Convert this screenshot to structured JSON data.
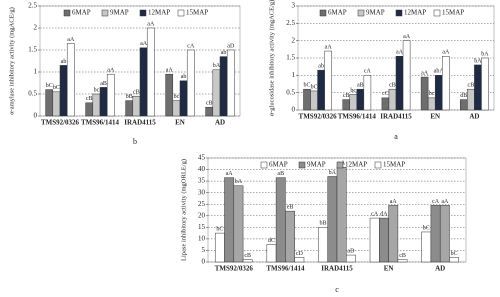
{
  "chart_data": [
    {
      "type": "bar",
      "panel_label": "b",
      "y_label": "α-amylase inhibitory activity (mgACE/g)",
      "categories": [
        "TMS92/0326",
        "TMS96/1414",
        "IRAD4115",
        "EN",
        "AD"
      ],
      "series": [
        {
          "name": "6MAP",
          "color": "#6e6e6e",
          "values": [
            0.6,
            0.3,
            0.35,
            0.95,
            0.2
          ],
          "letters": [
            "bC",
            "cB",
            "bB",
            "aA",
            "cB"
          ]
        },
        {
          "name": "9MAP",
          "color": "#c8c8c8",
          "values": [
            0.55,
            0.5,
            0.45,
            0.35,
            1.05
          ],
          "letters": [
            "bC",
            "bc",
            "cB",
            "bc",
            "bA"
          ]
        },
        {
          "name": "12MAP",
          "color": "#1f2a44",
          "values": [
            1.15,
            0.65,
            1.55,
            0.8,
            1.35
          ],
          "letters": [
            "ab",
            "aB",
            "aA",
            "ab",
            "ab"
          ]
        },
        {
          "name": "15MAP",
          "color": "#ffffff",
          "values": [
            1.65,
            0.95,
            2.0,
            1.5,
            1.5
          ],
          "letters": [
            "aA",
            "aA",
            "aA",
            "cA",
            "aD"
          ]
        }
      ],
      "ylim": [
        0,
        2.5
      ],
      "yticks": [
        0,
        0.5,
        1,
        1.5,
        2,
        2.5
      ],
      "grid": true
    },
    {
      "type": "bar",
      "panel_label": "a",
      "y_label": "α-glucosidase inhibitory activity (mgACE/g)",
      "categories": [
        "TMS92/0326",
        "TMS96/1414",
        "IRAD4115",
        "EN",
        "AD"
      ],
      "series": [
        {
          "name": "6MAP",
          "color": "#6e6e6e",
          "values": [
            0.6,
            0.3,
            0.35,
            0.95,
            0.3
          ],
          "letters": [
            "bC",
            "cB",
            "cC",
            "aA",
            "dB"
          ]
        },
        {
          "name": "9MAP",
          "color": "#c8c8c8",
          "values": [
            0.55,
            0.45,
            0.6,
            0.35,
            0.6
          ],
          "letters": [
            "bC",
            "bc",
            "cB",
            "bc",
            "cB"
          ]
        },
        {
          "name": "12MAP",
          "color": "#1f2a44",
          "values": [
            1.15,
            0.6,
            1.55,
            1.0,
            1.3
          ],
          "letters": [
            "ab",
            "aB",
            "aA",
            "abA",
            "bA"
          ]
        },
        {
          "name": "15MAP",
          "color": "#ffffff",
          "values": [
            1.7,
            1.0,
            2.0,
            1.55,
            1.5
          ],
          "letters": [
            "aA",
            "cA",
            "aA",
            "aA",
            "bA"
          ]
        }
      ],
      "ylim": [
        0,
        3
      ],
      "yticks": [
        0,
        0.5,
        1,
        1.5,
        2,
        2.5,
        3
      ],
      "grid": true
    },
    {
      "type": "bar",
      "panel_label": "c",
      "y_label": "Lipase inhibitory activity (mgORLE/g)",
      "categories": [
        "TMS92/0326",
        "TMS96/1414",
        "IRAD4115",
        "EN",
        "AD"
      ],
      "series": [
        {
          "name": "6MAP",
          "color": "#ffffff",
          "values": [
            12.5,
            7.5,
            15,
            19,
            13
          ],
          "letters": [
            "bC",
            "dC",
            "bB",
            "cA",
            "bC"
          ]
        },
        {
          "name": "9MAP",
          "color": "#8c8c8c",
          "values": [
            36.5,
            36.5,
            37,
            19,
            24.5
          ],
          "letters": [
            "aA",
            "aB",
            "bA",
            "dA",
            "cA"
          ]
        },
        {
          "name": "12MAP",
          "color": "#a6a6a6",
          "values": [
            33,
            22,
            41,
            24.5,
            24.5
          ],
          "letters": [
            "bA",
            "eB",
            "aA",
            "aA",
            "aA"
          ]
        },
        {
          "name": "15MAP",
          "color": "#ffffff",
          "values": [
            1,
            2,
            3,
            1,
            2
          ],
          "letters": [
            "cB",
            "cD",
            "aD",
            "cB",
            "bC"
          ]
        }
      ],
      "ylim": [
        0,
        45
      ],
      "yticks": [
        0,
        5,
        10,
        15,
        20,
        25,
        30,
        35,
        40,
        45
      ],
      "grid": true
    }
  ]
}
